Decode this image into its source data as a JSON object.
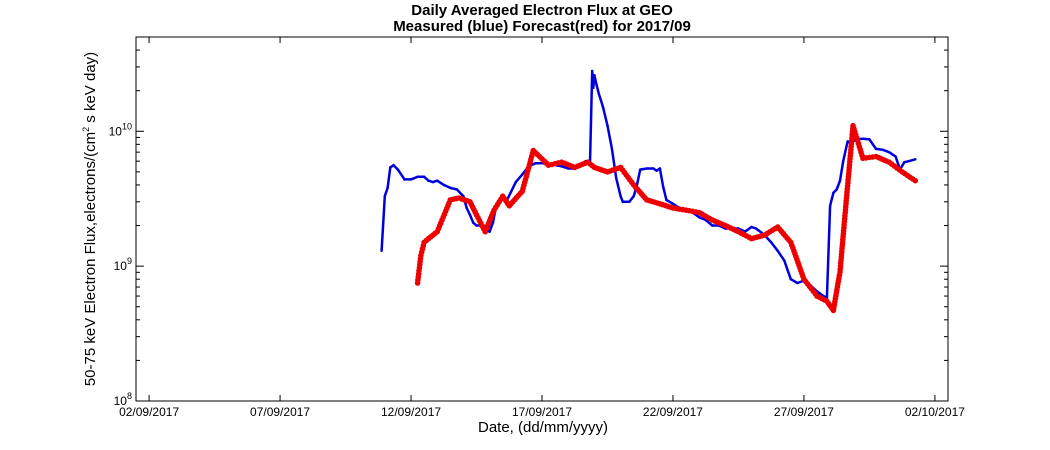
{
  "chart_data": {
    "type": "line",
    "title": "Daily Averaged Electron Flux at GEO",
    "subtitle": "Measured (blue) Forecast(red) for 2017/09",
    "xlabel": "Date, (dd/mm/yyyy)",
    "ylabel": {
      "prefix": "50-75 keV Electron Flux,electrons/(cm",
      "superscript": "2",
      "suffix": " s keV day)"
    },
    "y_scale": "log",
    "ylim": [
      100000000,
      50000000000
    ],
    "xlim": [
      "2017-09-01T12:00",
      "2017-10-02T12:00"
    ],
    "x_ticks": [
      "2017-09-02",
      "2017-09-07",
      "2017-09-12",
      "2017-09-17",
      "2017-09-22",
      "2017-09-27",
      "2017-10-02"
    ],
    "x_tick_labels": [
      "02/09/2017",
      "07/09/2017",
      "12/09/2017",
      "17/09/2017",
      "22/09/2017",
      "27/09/2017",
      "02/10/2017"
    ],
    "y_ticks": [
      {
        "value": 100000000,
        "base": "10",
        "exp": "8"
      },
      {
        "value": 1000000000,
        "base": "10",
        "exp": "9"
      },
      {
        "value": 10000000000,
        "base": "10",
        "exp": "10"
      }
    ],
    "grid": false,
    "colors": {
      "measured": "#0000dd",
      "forecast": "#ee0000"
    },
    "series": [
      {
        "id": "measured",
        "style": "line",
        "x": [
          "2017-09-10T21:00",
          "2017-09-11T00:00",
          "2017-09-11T02:30",
          "2017-09-11T05:00",
          "2017-09-11T08:00",
          "2017-09-11T12:00",
          "2017-09-11T18:00",
          "2017-09-12T00:00",
          "2017-09-12T06:00",
          "2017-09-12T12:00",
          "2017-09-12T16:00",
          "2017-09-12T20:00",
          "2017-09-13T00:00",
          "2017-09-13T06:00",
          "2017-09-13T12:00",
          "2017-09-13T18:00",
          "2017-09-14T00:00",
          "2017-09-14T03:00",
          "2017-09-14T06:00",
          "2017-09-14T09:00",
          "2017-09-14T12:00",
          "2017-09-14T16:00",
          "2017-09-14T19:00",
          "2017-09-15T00:00",
          "2017-09-15T03:00",
          "2017-09-15T06:00",
          "2017-09-15T09:00",
          "2017-09-15T12:00",
          "2017-09-15T16:00",
          "2017-09-16T00:00",
          "2017-09-16T06:00",
          "2017-09-16T12:00",
          "2017-09-16T18:00",
          "2017-09-17T00:00",
          "2017-09-17T06:00",
          "2017-09-17T12:00",
          "2017-09-17T18:00",
          "2017-09-18T00:00",
          "2017-09-18T06:00",
          "2017-09-18T12:00",
          "2017-09-18T16:00",
          "2017-09-18T20:00",
          "2017-09-18T22:00",
          "2017-09-18T23:00",
          "2017-09-19T00:00",
          "2017-09-19T02:00",
          "2017-09-19T04:00",
          "2017-09-19T06:00",
          "2017-09-19T08:00",
          "2017-09-19T12:00",
          "2017-09-19T16:00",
          "2017-09-19T20:00",
          "2017-09-20T00:00",
          "2017-09-20T02:00",
          "2017-09-20T04:00",
          "2017-09-20T08:00",
          "2017-09-20T12:00",
          "2017-09-20T15:00",
          "2017-09-20T18:00",
          "2017-09-21T00:00",
          "2017-09-21T06:00",
          "2017-09-21T09:00",
          "2017-09-21T12:00",
          "2017-09-21T15:00",
          "2017-09-21T18:00",
          "2017-09-22T00:00",
          "2017-09-22T06:00",
          "2017-09-22T12:00",
          "2017-09-22T18:00",
          "2017-09-23T00:00",
          "2017-09-23T06:00",
          "2017-09-23T12:00",
          "2017-09-23T18:00",
          "2017-09-24T00:00",
          "2017-09-24T06:00",
          "2017-09-24T12:00",
          "2017-09-24T18:00",
          "2017-09-25T00:00",
          "2017-09-25T04:00",
          "2017-09-25T08:00",
          "2017-09-25T12:00",
          "2017-09-25T18:00",
          "2017-09-26T00:00",
          "2017-09-26T06:00",
          "2017-09-26T12:00",
          "2017-09-26T18:00",
          "2017-09-27T00:00",
          "2017-09-27T06:00",
          "2017-09-27T12:00",
          "2017-09-27T18:00",
          "2017-09-27T21:00",
          "2017-09-28T00:00",
          "2017-09-28T03:00",
          "2017-09-28T06:00",
          "2017-09-28T09:00",
          "2017-09-28T12:00",
          "2017-09-28T16:00",
          "2017-09-28T20:00",
          "2017-09-29T00:00",
          "2017-09-29T06:00",
          "2017-09-29T12:00",
          "2017-09-29T18:00",
          "2017-09-30T00:00",
          "2017-09-30T06:00",
          "2017-09-30T12:00",
          "2017-09-30T16:00",
          "2017-09-30T20:00",
          "2017-10-01T00:00",
          "2017-10-01T06:00"
        ],
        "y": [
          1300000000,
          3300000000,
          3800000000,
          5400000000,
          5600000000,
          5200000000,
          4400000000,
          4400000000,
          4600000000,
          4600000000,
          4300000000,
          4200000000,
          4300000000,
          4000000000,
          3800000000,
          3700000000,
          3300000000,
          2700000000,
          2400000000,
          2100000000,
          2000000000,
          2000000000,
          1900000000,
          1800000000,
          2100000000,
          2800000000,
          3100000000,
          3300000000,
          3100000000,
          4200000000,
          4800000000,
          5500000000,
          5800000000,
          5800000000,
          5700000000,
          5600000000,
          5500000000,
          5300000000,
          5300000000,
          5700000000,
          6000000000,
          5800000000,
          28000000000,
          21000000000,
          26000000000,
          22000000000,
          19000000000,
          17000000000,
          15000000000,
          11000000000,
          7500000000,
          4500000000,
          3300000000,
          3000000000,
          3000000000,
          3000000000,
          3300000000,
          4000000000,
          5200000000,
          5300000000,
          5300000000,
          5100000000,
          5300000000,
          3900000000,
          3100000000,
          2900000000,
          2700000000,
          2600000000,
          2500000000,
          2300000000,
          2200000000,
          2000000000,
          2000000000,
          1900000000,
          1900000000,
          1900000000,
          1800000000,
          1950000000,
          1900000000,
          1800000000,
          1700000000,
          1500000000,
          1300000000,
          1100000000,
          800000000,
          750000000,
          780000000,
          720000000,
          650000000,
          600000000,
          580000000,
          2800000000,
          3500000000,
          3700000000,
          4300000000,
          6000000000,
          8400000000,
          8300000000,
          8700000000,
          8800000000,
          8700000000,
          7400000000,
          7300000000,
          7000000000,
          6500000000,
          5200000000,
          5900000000,
          6000000000,
          6200000000
        ]
      },
      {
        "id": "forecast",
        "style": "markers",
        "x": [
          "2017-09-12T06:00",
          "2017-09-12T09:00",
          "2017-09-12T12:00",
          "2017-09-12T16:00",
          "2017-09-13T00:00",
          "2017-09-13T12:00",
          "2017-09-13T20:00",
          "2017-09-14T06:00",
          "2017-09-14T12:00",
          "2017-09-14T20:00",
          "2017-09-15T04:00",
          "2017-09-15T12:00",
          "2017-09-15T18:00",
          "2017-09-16T06:00",
          "2017-09-16T16:00",
          "2017-09-17T06:00",
          "2017-09-17T18:00",
          "2017-09-18T06:00",
          "2017-09-18T18:00",
          "2017-09-19T00:00",
          "2017-09-19T12:00",
          "2017-09-20T00:00",
          "2017-09-20T12:00",
          "2017-09-21T00:00",
          "2017-09-21T12:00",
          "2017-09-22T00:00",
          "2017-09-22T12:00",
          "2017-09-23T00:00",
          "2017-09-23T12:00",
          "2017-09-24T00:00",
          "2017-09-24T12:00",
          "2017-09-25T00:00",
          "2017-09-25T12:00",
          "2017-09-26T00:00",
          "2017-09-26T12:00",
          "2017-09-27T00:00",
          "2017-09-27T12:00",
          "2017-09-27T21:00",
          "2017-09-28T03:00",
          "2017-09-28T09:00",
          "2017-09-28T15:00",
          "2017-09-28T21:00",
          "2017-09-29T06:00",
          "2017-09-29T18:00",
          "2017-09-30T06:00",
          "2017-09-30T18:00",
          "2017-10-01T06:00"
        ],
        "y": [
          750000000,
          1200000000,
          1500000000,
          1600000000,
          1800000000,
          3100000000,
          3200000000,
          3000000000,
          2400000000,
          1800000000,
          2600000000,
          3300000000,
          2800000000,
          3600000000,
          7200000000,
          5600000000,
          5900000000,
          5400000000,
          5900000000,
          5400000000,
          5000000000,
          5400000000,
          4000000000,
          3100000000,
          2900000000,
          2700000000,
          2600000000,
          2500000000,
          2200000000,
          2000000000,
          1800000000,
          1600000000,
          1700000000,
          1950000000,
          1500000000,
          800000000,
          600000000,
          550000000,
          470000000,
          900000000,
          3200000000,
          11000000000,
          6300000000,
          6500000000,
          5900000000,
          5000000000,
          4300000000
        ]
      }
    ]
  }
}
